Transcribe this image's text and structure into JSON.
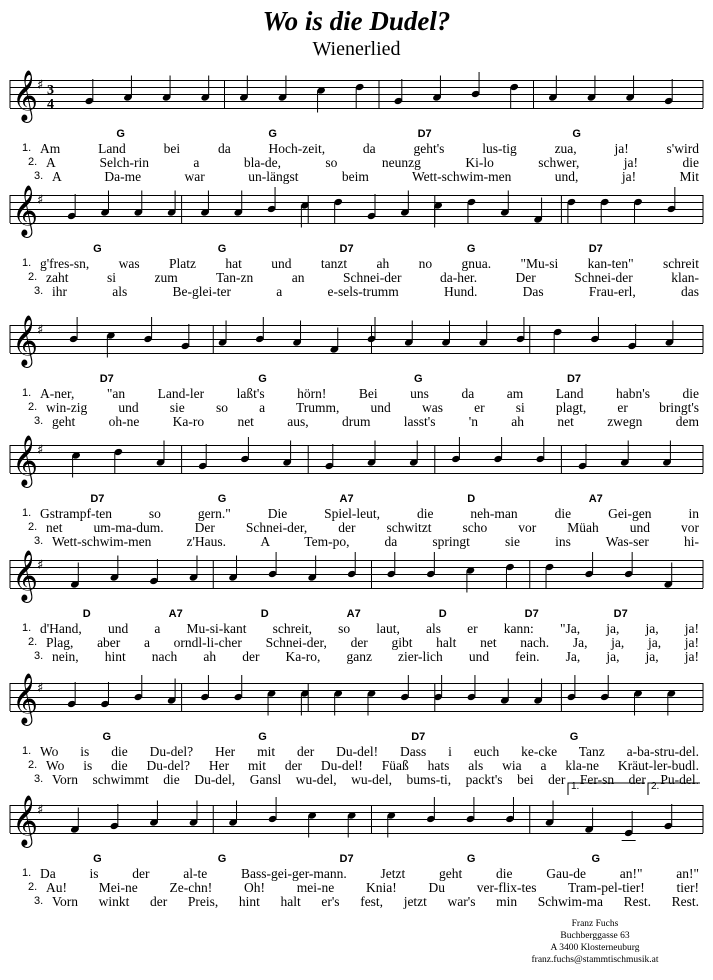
{
  "title": "Wo is die Dudel?",
  "subtitle": "Wienerlied",
  "time_signature": {
    "top": "3",
    "bottom": "4"
  },
  "key_signature": "G major (one sharp)",
  "voltas": [
    "1.",
    "2."
  ],
  "systems": [
    {
      "chords": [
        "G",
        "G",
        "D7",
        "G"
      ],
      "verses": [
        {
          "n": "1.",
          "text": "Am Land bei da Hoch-zeit, da geht's lus-tig zua, ja! s'wird"
        },
        {
          "n": "2.",
          "text": "A Selch-rin a bla-de, so neunzg Ki-lo schwer, ja! die"
        },
        {
          "n": "3.",
          "text": "A Da-me war un-längst beim Wett-schwim-men und, ja! Mit"
        }
      ]
    },
    {
      "chords": [
        "G",
        "G",
        "D7",
        "G",
        "D7"
      ],
      "verses": [
        {
          "n": "1.",
          "text": "g'fres-sn, was Platz hat und tanzt ah no gnua. \"Mu-si kan-ten\" schreit"
        },
        {
          "n": "2.",
          "text": "zaht si zum Tan-zn an Schnei-der da-her. Der Schnei-der klan-"
        },
        {
          "n": "3.",
          "text": "ihr als Be-glei-ter a e-sels-trumm Hund. Das Frau-erl, das"
        }
      ]
    },
    {
      "chords": [
        "D7",
        "G",
        "G",
        "D7"
      ],
      "verses": [
        {
          "n": "1.",
          "text": "A-ner, \"an Land-ler laßt's hörn! Bei uns da am Land habn's die"
        },
        {
          "n": "2.",
          "text": "win-zig und sie so a Trumm, und was er si plagt, er bringt's"
        },
        {
          "n": "3.",
          "text": "geht oh-ne Ka-ro net aus, drum lasst's 'n ah net zwegn dem"
        }
      ]
    },
    {
      "chords": [
        "D7",
        "G",
        "A7",
        "D",
        "A7"
      ],
      "verses": [
        {
          "n": "1.",
          "text": "Gstrampf-ten so gern.\" Die Spiel-leut, die neh-man die Gei-gen in"
        },
        {
          "n": "2.",
          "text": "net um-ma-dum. Der Schnei-der, der schwitzt scho vor Müah und vor"
        },
        {
          "n": "3.",
          "text": "Wett-schwim-men z'Haus. A Tem-po, da springt sie ins Was-ser hi-"
        }
      ]
    },
    {
      "chords": [
        "D",
        "A7",
        "D",
        "A7",
        "D",
        "D7",
        "D7"
      ],
      "verses": [
        {
          "n": "1.",
          "text": "d'Hand, und a Mu-si-kant schreit, so laut, als er kann: \"Ja, ja, ja, ja!"
        },
        {
          "n": "2.",
          "text": "Plag, aber a orndl-li-cher Schnei-der, der gibt halt net nach. Ja, ja, ja, ja!"
        },
        {
          "n": "3.",
          "text": "nein, hint nach ah der Ka-ro, ganz zier-lich und fein. Ja, ja, ja, ja!"
        }
      ]
    },
    {
      "chords": [
        "G",
        "G",
        "D7",
        "G"
      ],
      "verses": [
        {
          "n": "1.",
          "text": "Wo is die Du-del? Her mit der Du-del! Dass i euch ke-cke Tanz a-ba-stru-del."
        },
        {
          "n": "2.",
          "text": "Wo is die Du-del? Her mit der Du-del! Füaß hats als wia a kla-ne Kräut-ler-budl."
        },
        {
          "n": "3.",
          "text": "Vorn schwimmt die Du-del, Gansl wu-del, wu-del, bums-ti, packt's bei der Fer-sn der Pu-del."
        }
      ]
    },
    {
      "chords": [
        "G",
        "G",
        "D7",
        "G",
        "G"
      ],
      "verses": [
        {
          "n": "1.",
          "text": "Da is der al-te Bass-gei-ger-mann. Jetzt geht die Gau-de an!\" an!\""
        },
        {
          "n": "2.",
          "text": "Au! Mei-ne Ze-chn! Oh! mei-ne Knia! Du ver-flix-tes Tram-pel-tier! tier!"
        },
        {
          "n": "3.",
          "text": "Vorn winkt der Preis, hint halt er's fest, jetzt war's min Schwim-ma Rest. Rest."
        }
      ]
    }
  ],
  "footer": {
    "name": "Franz Fuchs",
    "street": "Buchberggasse 63",
    "city": "A 3400 Klosterneuburg",
    "email": "franz.fuchs@stammtischmusik.at"
  }
}
